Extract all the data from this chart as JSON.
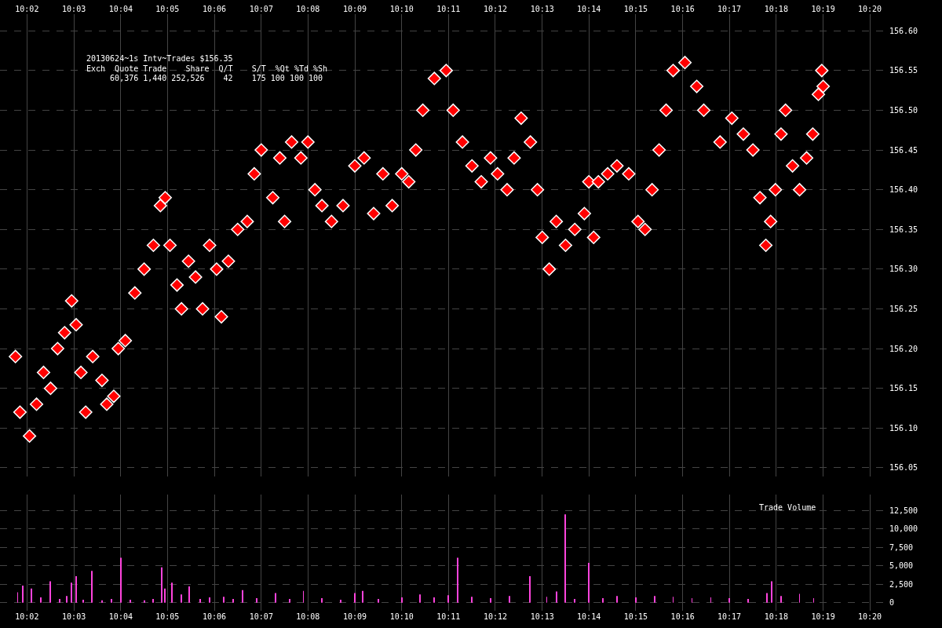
{
  "chart_data": [
    {
      "type": "scatter",
      "marker": "diamond",
      "grid": true,
      "tick_labels": "xy",
      "annotations": [
        "20130624~1s Intv~Trades $156.35",
        "Exch  Quote Trade    Share  Q/T    S/T  %Qt %Td %Sh",
        "     60,376 1,440 252,526    42    175 100 100 100"
      ],
      "xlim": [
        10.0237,
        10.34
      ],
      "ylim": [
        156.039,
        156.621
      ],
      "xticks": [
        {
          "value": 10.0333,
          "label": "10:02"
        },
        {
          "value": 10.05,
          "label": "10:03"
        },
        {
          "value": 10.0667,
          "label": "10:04"
        },
        {
          "value": 10.0833,
          "label": "10:05"
        },
        {
          "value": 10.1,
          "label": "10:06"
        },
        {
          "value": 10.1167,
          "label": "10:07"
        },
        {
          "value": 10.1333,
          "label": "10:08"
        },
        {
          "value": 10.15,
          "label": "10:09"
        },
        {
          "value": 10.1667,
          "label": "10:10"
        },
        {
          "value": 10.1833,
          "label": "10:11"
        },
        {
          "value": 10.2,
          "label": "10:12"
        },
        {
          "value": 10.2167,
          "label": "10:13"
        },
        {
          "value": 10.2333,
          "label": "10:14"
        },
        {
          "value": 10.25,
          "label": "10:15"
        },
        {
          "value": 10.2667,
          "label": "10:16"
        },
        {
          "value": 10.2833,
          "label": "10:17"
        },
        {
          "value": 10.3,
          "label": "10:18"
        },
        {
          "value": 10.3167,
          "label": "10:19"
        },
        {
          "value": 10.3333,
          "label": "10:20"
        }
      ],
      "yticks": [
        {
          "value": 156.05,
          "label": "156.05"
        },
        {
          "value": 156.1,
          "label": "156.10"
        },
        {
          "value": 156.15,
          "label": "156.15"
        },
        {
          "value": 156.2,
          "label": "156.20"
        },
        {
          "value": 156.25,
          "label": "156.25"
        },
        {
          "value": 156.3,
          "label": "156.30"
        },
        {
          "value": 156.35,
          "label": "156.35"
        },
        {
          "value": 156.4,
          "label": "156.40"
        },
        {
          "value": 156.45,
          "label": "156.45"
        },
        {
          "value": 156.5,
          "label": "156.50"
        },
        {
          "value": 156.55,
          "label": "156.55"
        },
        {
          "value": 156.6,
          "label": "156.60"
        }
      ],
      "series": [
        {
          "color": "#ff0000",
          "x": [
            10.0292,
            10.0308,
            10.0342,
            10.0367,
            10.0392,
            10.0417,
            10.0442,
            10.0467,
            10.0492,
            10.0508,
            10.0525,
            10.0542,
            10.0567,
            10.06,
            10.0617,
            10.0642,
            10.0658,
            10.0683,
            10.0717,
            10.075,
            10.0783,
            10.0808,
            10.0825,
            10.0842,
            10.0867,
            10.0883,
            10.0908,
            10.0933,
            10.0958,
            10.0983,
            10.1008,
            10.1025,
            10.105,
            10.1083,
            10.1117,
            10.1142,
            10.1167,
            10.1208,
            10.1233,
            10.125,
            10.1275,
            10.1308,
            10.1333,
            10.1358,
            10.1383,
            10.1417,
            10.1458,
            10.15,
            10.1533,
            10.1567,
            10.16,
            10.1633,
            10.1667,
            10.1692,
            10.1717,
            10.1742,
            10.1783,
            10.1825,
            10.185,
            10.1883,
            10.1917,
            10.195,
            10.1983,
            10.2008,
            10.2042,
            10.2067,
            10.2092,
            10.2125,
            10.215,
            10.2167,
            10.2192,
            10.2217,
            10.225,
            10.2283,
            10.2317,
            10.2333,
            10.235,
            10.2367,
            10.24,
            10.2433,
            10.2475,
            10.2508,
            10.2533,
            10.2558,
            10.2583,
            10.2608,
            10.2633,
            10.2675,
            10.2717,
            10.2742,
            10.28,
            10.2842,
            10.2883,
            10.2917,
            10.2942,
            10.2963,
            10.298,
            10.2997,
            10.3017,
            10.3033,
            10.3058,
            10.3083,
            10.3108,
            10.313,
            10.315,
            10.3162,
            10.3167
          ],
          "values": [
            156.19,
            156.12,
            156.09,
            156.13,
            156.17,
            156.15,
            156.2,
            156.22,
            156.26,
            156.23,
            156.17,
            156.12,
            156.19,
            156.16,
            156.13,
            156.14,
            156.2,
            156.21,
            156.27,
            156.3,
            156.33,
            156.38,
            156.39,
            156.33,
            156.28,
            156.25,
            156.31,
            156.29,
            156.25,
            156.33,
            156.3,
            156.24,
            156.31,
            156.35,
            156.36,
            156.42,
            156.45,
            156.39,
            156.44,
            156.36,
            156.46,
            156.44,
            156.46,
            156.4,
            156.38,
            156.36,
            156.38,
            156.43,
            156.44,
            156.37,
            156.42,
            156.38,
            156.42,
            156.41,
            156.45,
            156.5,
            156.54,
            156.55,
            156.5,
            156.46,
            156.43,
            156.41,
            156.44,
            156.42,
            156.4,
            156.44,
            156.49,
            156.46,
            156.4,
            156.34,
            156.3,
            156.36,
            156.33,
            156.35,
            156.37,
            156.41,
            156.34,
            156.41,
            156.42,
            156.43,
            156.42,
            156.36,
            156.35,
            156.4,
            156.45,
            156.5,
            156.55,
            156.56,
            156.53,
            156.5,
            156.46,
            156.49,
            156.47,
            156.45,
            156.39,
            156.33,
            156.36,
            156.4,
            156.47,
            156.5,
            156.43,
            156.4,
            156.44,
            156.47,
            156.52,
            156.55,
            156.53
          ]
        }
      ]
    },
    {
      "type": "bar",
      "grid": true,
      "annotations": [
        "Trade Volume"
      ],
      "xlim": [
        10.0237,
        10.34
      ],
      "ylim": [
        -1100,
        14700
      ],
      "xticks": [
        {
          "value": 10.0333,
          "label": "10:02"
        },
        {
          "value": 10.05,
          "label": "10:03"
        },
        {
          "value": 10.0667,
          "label": "10:04"
        },
        {
          "value": 10.0833,
          "label": "10:05"
        },
        {
          "value": 10.1,
          "label": "10:06"
        },
        {
          "value": 10.1167,
          "label": "10:07"
        },
        {
          "value": 10.1333,
          "label": "10:08"
        },
        {
          "value": 10.15,
          "label": "10:09"
        },
        {
          "value": 10.1667,
          "label": "10:10"
        },
        {
          "value": 10.1833,
          "label": "10:11"
        },
        {
          "value": 10.2,
          "label": "10:12"
        },
        {
          "value": 10.2167,
          "label": "10:13"
        },
        {
          "value": 10.2333,
          "label": "10:14"
        },
        {
          "value": 10.25,
          "label": "10:15"
        },
        {
          "value": 10.2667,
          "label": "10:16"
        },
        {
          "value": 10.2833,
          "label": "10:17"
        },
        {
          "value": 10.3,
          "label": "10:18"
        },
        {
          "value": 10.3167,
          "label": "10:19"
        },
        {
          "value": 10.3333,
          "label": "10:20"
        }
      ],
      "yticks": [
        0,
        {
          "value": 2500,
          "label": "2,500"
        },
        {
          "value": 5000,
          "label": "5,000"
        },
        {
          "value": 7500,
          "label": "7,500"
        },
        {
          "value": 10000,
          "label": "10,000"
        },
        {
          "value": 12500,
          "label": "12,500"
        }
      ],
      "series": [
        {
          "color": "#ff44dd",
          "x": [
            10.03,
            10.0317,
            10.035,
            10.0383,
            10.0417,
            10.045,
            10.0475,
            10.0492,
            10.0508,
            10.0533,
            10.0563,
            10.06,
            10.0633,
            10.0667,
            10.07,
            10.075,
            10.0783,
            10.0813,
            10.0825,
            10.085,
            10.0883,
            10.091,
            10.095,
            10.0983,
            10.1033,
            10.1067,
            10.11,
            10.115,
            10.1217,
            10.1267,
            10.1317,
            10.1383,
            10.145,
            10.15,
            10.1527,
            10.1583,
            10.1667,
            10.1733,
            10.1783,
            10.1833,
            10.1867,
            10.1917,
            10.1983,
            10.205,
            10.2123,
            10.2183,
            10.2217,
            10.225,
            10.2283,
            10.2333,
            10.2383,
            10.2433,
            10.25,
            10.2567,
            10.2633,
            10.27,
            10.2767,
            10.2833,
            10.29,
            10.2967,
            10.2983,
            10.3017,
            10.3083,
            10.3133
          ],
          "values": [
            1400,
            2300,
            1900,
            700,
            2900,
            500,
            900,
            2700,
            3600,
            400,
            4300,
            300,
            500,
            6100,
            400,
            300,
            500,
            4800,
            1900,
            2700,
            1100,
            2200,
            500,
            700,
            800,
            500,
            1700,
            600,
            1300,
            500,
            1600,
            600,
            400,
            1300,
            1600,
            500,
            700,
            1100,
            700,
            1000,
            6100,
            800,
            600,
            900,
            3600,
            800,
            1500,
            12000,
            500,
            5400,
            600,
            900,
            700,
            900,
            800,
            600,
            700,
            600,
            500,
            1300,
            2900,
            900,
            1200,
            600
          ]
        }
      ]
    }
  ]
}
